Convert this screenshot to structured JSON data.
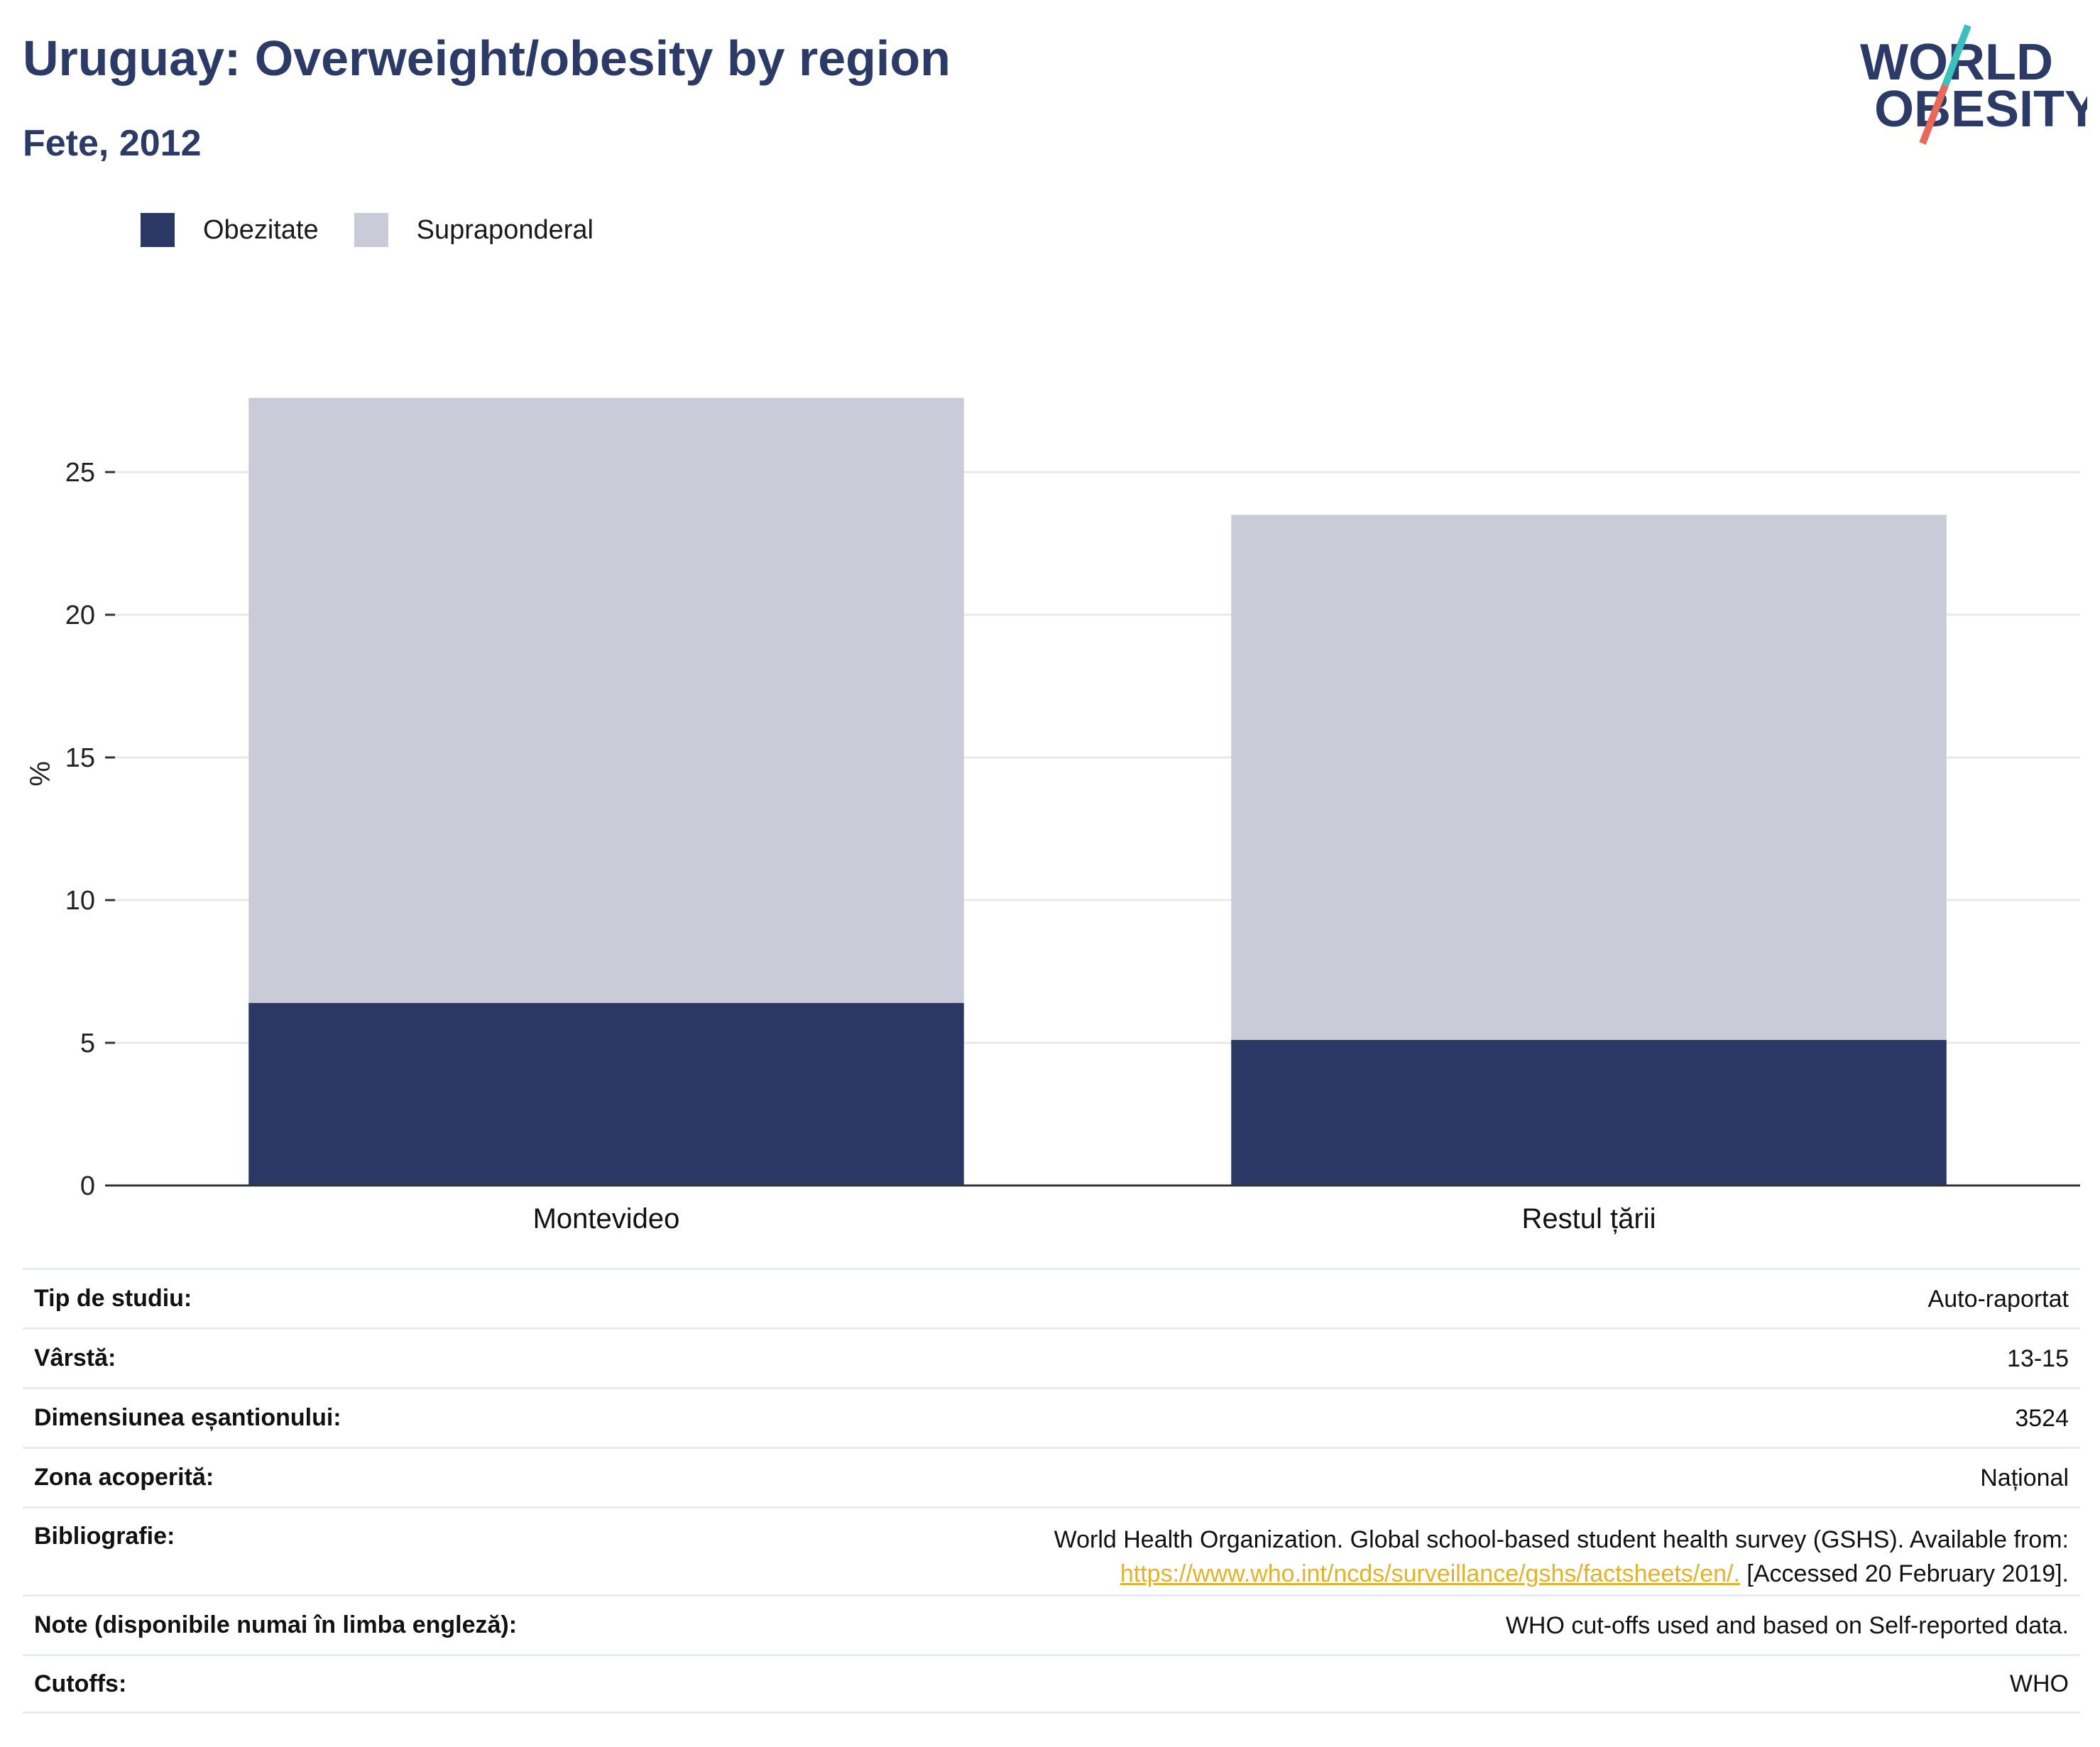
{
  "header": {
    "title": "Uruguay: Overweight/obesity by region",
    "subtitle": "Fete, 2012"
  },
  "logo": {
    "line1": "WORLD",
    "line2": "OBESITY",
    "colors": {
      "text": "#2b3a67",
      "slash_top": "#3bbfbf",
      "slash_bottom": "#e8685a"
    }
  },
  "legend": [
    {
      "label": "Obezitate",
      "color": "#2b3764"
    },
    {
      "label": "Supraponderal",
      "color": "#c9ccd8"
    }
  ],
  "chart_data": {
    "type": "bar",
    "stacked": true,
    "categories": [
      "Montevideo",
      "Restul țării"
    ],
    "series": [
      {
        "name": "Obezitate",
        "color": "#2b3764",
        "values": [
          6.4,
          5.1
        ]
      },
      {
        "name": "Supraponderal",
        "color": "#c9ccd8",
        "values": [
          21.2,
          18.4
        ]
      }
    ],
    "ylabel": "%",
    "xlabel": "",
    "ylim": [
      0,
      30
    ],
    "yticks": [
      0,
      5,
      10,
      15,
      20,
      25
    ],
    "grid": true,
    "legend_position": "top-left"
  },
  "info": [
    {
      "label": "Tip de studiu:",
      "value": "Auto-raportat"
    },
    {
      "label": "Vârstă:",
      "value": "13-15"
    },
    {
      "label": "Dimensiunea eșantionului:",
      "value": "3524"
    },
    {
      "label": "Zona acoperită:",
      "value": "Național"
    },
    {
      "label": "Bibliografie:",
      "value_line1": "World Health Organization. Global school-based student health survey (GSHS). Available from:",
      "link": "https://www.who.int/ncds/surveillance/gshs/factsheets/en/.",
      "value_after_link": "[Accessed 20 February 2019]."
    },
    {
      "label": "Note (disponibile numai în limba engleză):",
      "value": "WHO cut-offs used and based on Self-reported data."
    },
    {
      "label": "Cutoffs:",
      "value": "WHO"
    }
  ]
}
